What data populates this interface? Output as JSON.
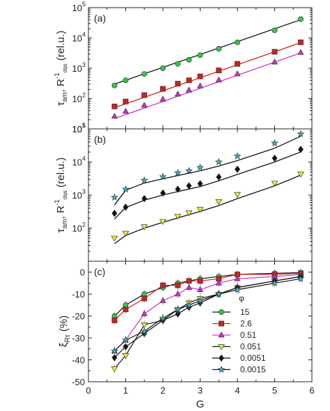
{
  "chart_data": [
    {
      "type": "scatter",
      "panel_label": "(a)",
      "y_scale": "log",
      "ylim": [
        10,
        100000
      ],
      "xlim": [
        0,
        6
      ],
      "ylabel": {
        "main": "τam, R-1dqs (rel.u.)",
        "parts": [
          "τ",
          "am",
          ", R",
          "-1",
          "dqs",
          " (rel.u.)"
        ]
      },
      "xlabel": "",
      "x_ticks": [
        0,
        1,
        2,
        3,
        4,
        5,
        6
      ],
      "y_ticks": [
        {
          "value": 10,
          "base": "10",
          "exp": "1"
        },
        {
          "value": 100,
          "base": "10",
          "exp": "2"
        },
        {
          "value": 1000,
          "base": "10",
          "exp": "3"
        },
        {
          "value": 10000,
          "base": "10",
          "exp": "4"
        },
        {
          "value": 100000,
          "base": "10",
          "exp": "5"
        }
      ],
      "series": [
        {
          "color": "#2ecc40",
          "marker": "circle",
          "line": "#111111",
          "x": [
            0.7,
            1.0,
            1.5,
            2.0,
            2.4,
            2.7,
            3.0,
            3.5,
            4.0,
            5.0,
            5.7
          ],
          "y": [
            270,
            400,
            650,
            1000,
            1400,
            1900,
            2700,
            4400,
            7200,
            18000,
            42000
          ],
          "fit_x": [
            0.7,
            5.7
          ],
          "fit_y": [
            300,
            40000
          ]
        },
        {
          "color": "#cc2222",
          "marker": "square",
          "line": "#cc2222",
          "x": [
            0.7,
            1.0,
            1.5,
            2.0,
            2.4,
            2.7,
            3.0,
            3.5,
            4.0,
            5.0,
            5.7
          ],
          "y": [
            55,
            80,
            130,
            210,
            310,
            400,
            540,
            850,
            1400,
            3500,
            7200
          ],
          "fit_x": [
            0.7,
            5.7
          ],
          "fit_y": [
            50,
            7000
          ]
        },
        {
          "color": "#cc33cc",
          "marker": "triangle",
          "line": "#cc33cc",
          "x": [
            0.7,
            1.0,
            1.5,
            2.0,
            2.4,
            2.7,
            3.0,
            3.5,
            4.0,
            5.0,
            5.7
          ],
          "y": [
            26,
            38,
            60,
            95,
            140,
            190,
            260,
            410,
            650,
            1600,
            3300
          ],
          "fit_x": [
            0.7,
            5.7
          ],
          "fit_y": [
            22,
            3200
          ]
        }
      ]
    },
    {
      "type": "scatter",
      "panel_label": "(b)",
      "y_scale": "log",
      "ylim": [
        10,
        100000
      ],
      "xlim": [
        0,
        6
      ],
      "ylabel": {
        "main": "τam, R-1dqs (rel.u.)",
        "parts": [
          "τ",
          "am",
          ", R",
          "-1",
          "dqs",
          " (rel.u.)"
        ]
      },
      "xlabel": "",
      "x_ticks": [
        0,
        1,
        2,
        3,
        4,
        5,
        6
      ],
      "y_ticks": [
        {
          "value": 100,
          "base": "10",
          "exp": "2"
        },
        {
          "value": 1000,
          "base": "10",
          "exp": "3"
        },
        {
          "value": 10000,
          "base": "10",
          "exp": "4"
        },
        {
          "value": 100000,
          "base": "10",
          "exp": "5"
        }
      ],
      "series": [
        {
          "color": "#33bbcc",
          "marker": "star",
          "line": "#111111",
          "x": [
            0.7,
            1.0,
            1.5,
            2.0,
            2.4,
            2.7,
            3.0,
            3.5,
            4.0,
            5.0,
            5.7
          ],
          "y": [
            850,
            1500,
            2800,
            3600,
            4700,
            5400,
            6800,
            10000,
            15000,
            37000,
            70000
          ],
          "fit_x": [
            0.7,
            1.0,
            1.5,
            2.0,
            2.5,
            3.0,
            3.5,
            4.0,
            5.0,
            5.7
          ],
          "fit_y": [
            500,
            1400,
            2300,
            3100,
            4100,
            5400,
            7500,
            11000,
            26000,
            60000
          ]
        },
        {
          "color": "#111111",
          "marker": "diamond",
          "line": "#111111",
          "x": [
            0.7,
            1.0,
            1.5,
            2.0,
            2.4,
            2.7,
            3.0,
            3.5,
            4.0,
            5.0,
            5.7
          ],
          "y": [
            280,
            430,
            780,
            1150,
            1500,
            1900,
            2200,
            3500,
            6000,
            13000,
            24000
          ],
          "fit_x": [
            0.7,
            1.0,
            1.5,
            2.0,
            2.5,
            3.0,
            3.5,
            4.0,
            5.0,
            5.7
          ],
          "fit_y": [
            190,
            420,
            700,
            1000,
            1350,
            1800,
            2700,
            4200,
            10000,
            20000
          ]
        },
        {
          "color": "#eeee22",
          "marker": "triangle-down",
          "line": "#111111",
          "x": [
            0.7,
            1.0,
            1.5,
            2.0,
            2.4,
            2.7,
            3.0,
            3.5,
            4.0,
            5.0,
            5.7
          ],
          "y": [
            50,
            70,
            110,
            160,
            230,
            290,
            370,
            640,
            1050,
            2300,
            4300
          ],
          "fit_x": [
            0.7,
            1.0,
            1.5,
            2.0,
            2.5,
            3.0,
            3.5,
            4.0,
            5.0,
            5.7
          ],
          "fit_y": [
            34,
            60,
            100,
            150,
            220,
            320,
            480,
            780,
            1900,
            4000
          ]
        }
      ]
    },
    {
      "type": "line",
      "panel_label": "(c)",
      "y_scale": "linear",
      "ylim": [
        -50,
        5
      ],
      "xlim": [
        0,
        6
      ],
      "ylabel": {
        "main": "ξRτ (%)",
        "parts": [
          "ξ",
          "Rτ",
          " (%)"
        ]
      },
      "xlabel": "G",
      "x_ticks": [
        0,
        1,
        2,
        3,
        4,
        5,
        6
      ],
      "y_ticks": [
        {
          "value": 0,
          "label": "0"
        },
        {
          "value": -10,
          "label": "-10"
        },
        {
          "value": -20,
          "label": "-20"
        },
        {
          "value": -30,
          "label": "-30"
        },
        {
          "value": -40,
          "label": "-40"
        },
        {
          "value": -50,
          "label": "-50"
        }
      ],
      "legend": {
        "title": "φ",
        "placement": "lower-right"
      },
      "series": [
        {
          "name": "15",
          "color": "#2ecc40",
          "marker": "circle",
          "line": "#111111",
          "x": [
            0.7,
            1.0,
            1.5,
            2.0,
            2.4,
            2.7,
            3.0,
            3.5,
            4.0,
            5.0,
            5.7
          ],
          "y": [
            -20,
            -15,
            -10,
            -7,
            -5,
            -4,
            -3,
            -2,
            -1,
            -0.5,
            -0.2
          ]
        },
        {
          "name": "2.6",
          "color": "#cc2222",
          "marker": "square",
          "line": "#cc2222",
          "x": [
            0.7,
            1.0,
            1.5,
            2.0,
            2.4,
            2.7,
            3.0,
            3.5,
            4.0,
            5.0,
            5.7
          ],
          "y": [
            -22,
            -17,
            -12,
            -6,
            -6,
            -4,
            -4,
            -3,
            -1,
            -1,
            -0.5
          ]
        },
        {
          "name": "0.51",
          "color": "#cc33cc",
          "marker": "triangle",
          "line": "#cc33cc",
          "x": [
            0.7,
            1.0,
            1.5,
            2.0,
            2.4,
            2.7,
            3.0,
            3.5,
            4.0,
            5.0,
            5.7
          ],
          "y": [
            -36,
            -31,
            -19,
            -13,
            -10,
            -7,
            -8,
            -5,
            -3,
            -2,
            -1
          ]
        },
        {
          "name": "0.051",
          "color": "#eeee22",
          "marker": "triangle-down",
          "line": "#111111",
          "x": [
            0.7,
            1.0,
            1.5,
            2.0,
            2.4,
            2.7,
            3.0,
            3.5,
            4.0,
            5.0,
            5.7
          ],
          "y": [
            -44,
            -38,
            -24,
            -22,
            -17,
            -14,
            -12,
            -10,
            -7,
            -4,
            -2
          ]
        },
        {
          "name": "0.0051",
          "color": "#111111",
          "marker": "diamond",
          "line": "#111111",
          "x": [
            0.7,
            1.0,
            1.5,
            2.0,
            2.4,
            2.7,
            3.0,
            3.5,
            4.0,
            5.0,
            5.7
          ],
          "y": [
            -39,
            -34,
            -28,
            -22,
            -19,
            -16,
            -14,
            -10,
            -7,
            -4,
            -2
          ]
        },
        {
          "name": "0.0015",
          "color": "#33bbcc",
          "marker": "star",
          "line": "#111111",
          "x": [
            0.7,
            1.0,
            1.5,
            2.0,
            2.4,
            2.7,
            3.0,
            3.5,
            4.0,
            5.0,
            5.7
          ],
          "y": [
            -36,
            -31,
            -27,
            -21,
            -17,
            -15,
            -13,
            -10,
            -8,
            -5,
            -3
          ]
        }
      ]
    }
  ]
}
